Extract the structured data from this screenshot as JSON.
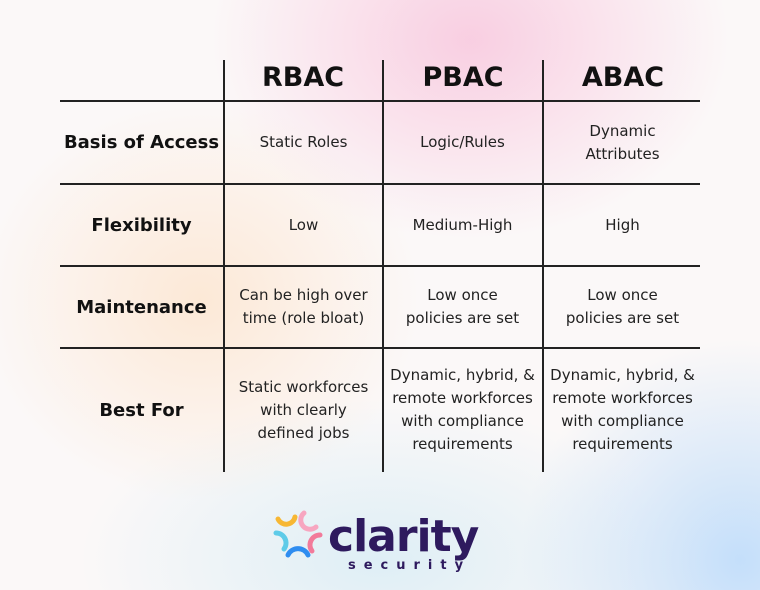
{
  "table": {
    "columns": [
      "RBAC",
      "PBAC",
      "ABAC"
    ],
    "rows": [
      {
        "label": "Basis of Access",
        "cells": [
          "Static Roles",
          "Logic/Rules",
          "Dynamic\nAttributes"
        ]
      },
      {
        "label": "Flexibility",
        "cells": [
          "Low",
          "Medium-High",
          "High"
        ]
      },
      {
        "label": "Maintenance",
        "cells": [
          "Can be high over\ntime (role bloat)",
          "Low once\npolicies are set",
          "Low once\npolicies are set"
        ]
      },
      {
        "label": "Best For",
        "cells": [
          "Static workforces\nwith clearly\ndefined jobs",
          "Dynamic, hybrid, &\nremote workforces\nwith compliance\nrequirements",
          "Dynamic, hybrid, &\nremote workforces\nwith compliance\nrequirements"
        ]
      }
    ]
  },
  "logo": {
    "name": "clarity",
    "tagline": "security",
    "brand_color": "#2e1a5e",
    "petal_colors": [
      "#f7b733",
      "#f7a6c0",
      "#5ecbe8",
      "#f27a9a",
      "#2f8df0"
    ]
  }
}
